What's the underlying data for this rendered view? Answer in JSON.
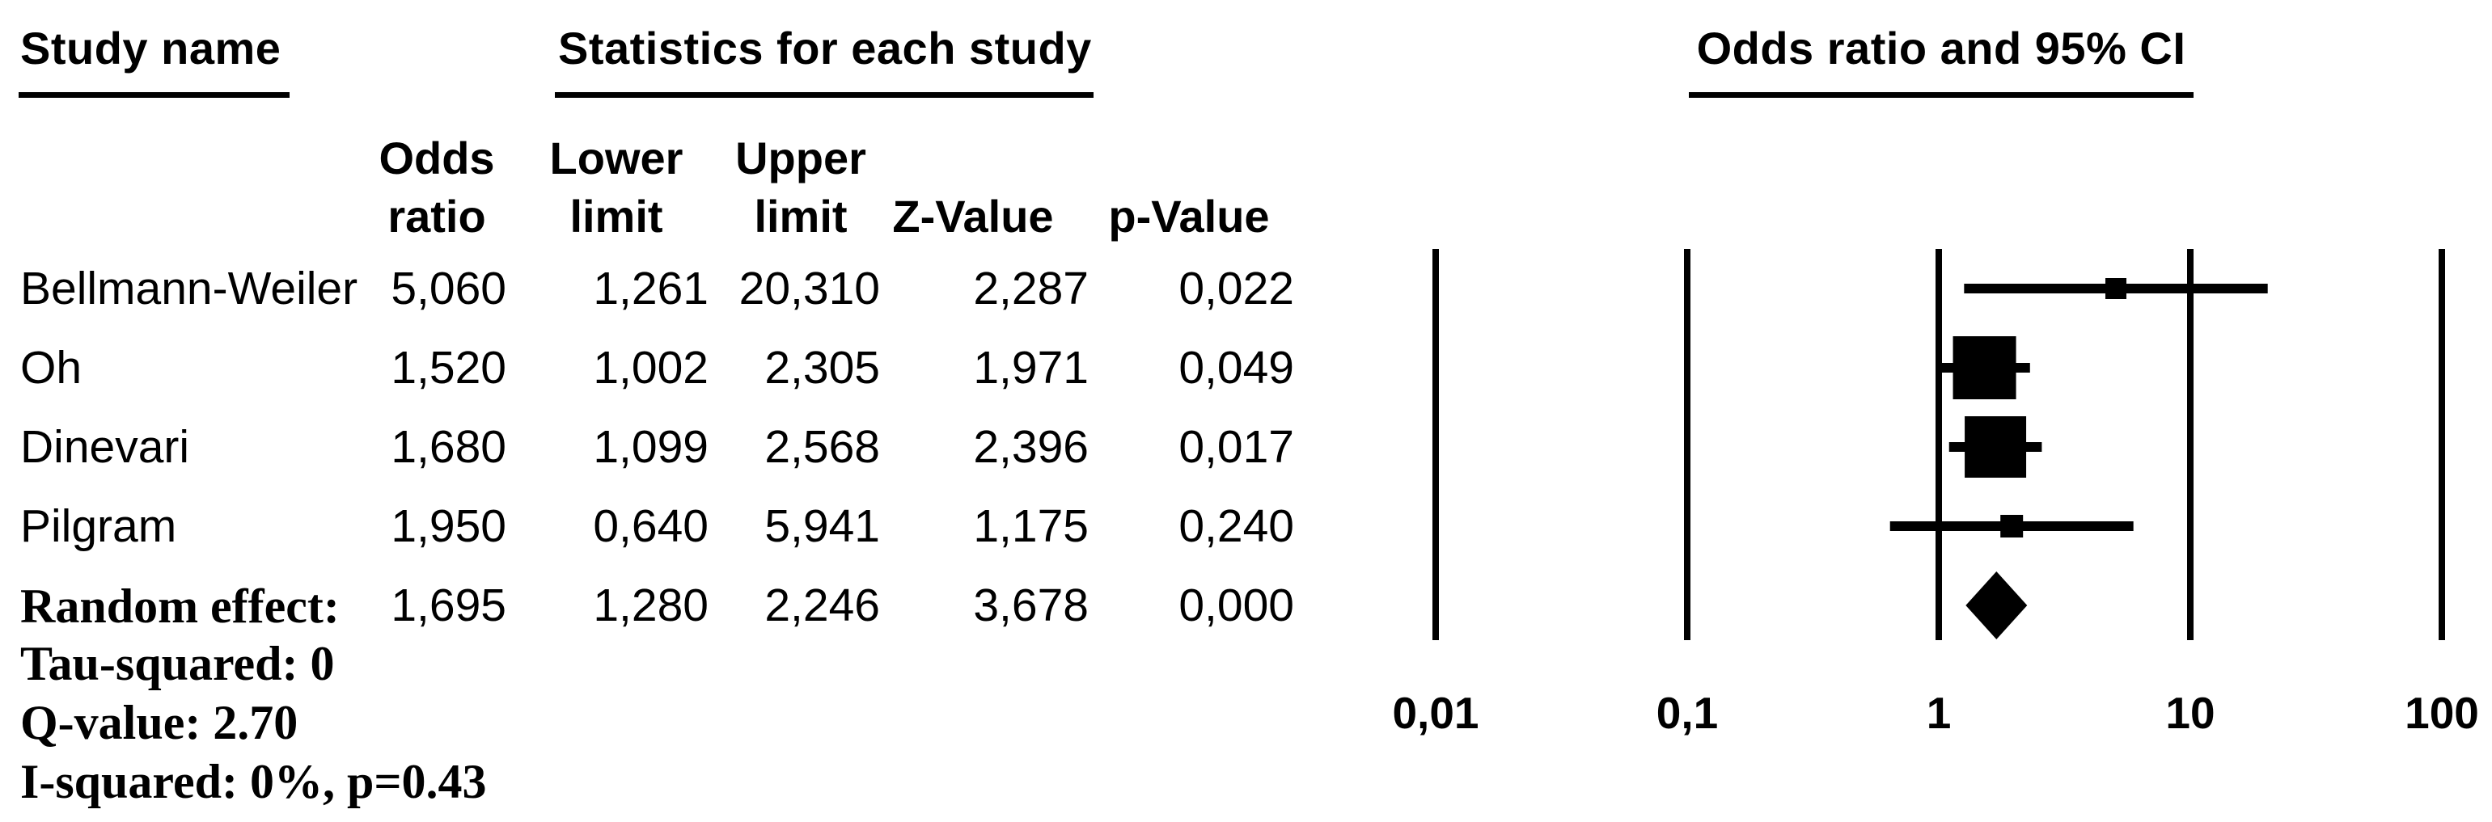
{
  "page": {
    "background": "#ffffff",
    "ink": "#000000"
  },
  "headers": {
    "study_name": "Study name",
    "statistics": "Statistics for each study",
    "plot": "Odds ratio and 95% CI"
  },
  "table": {
    "columns": [
      {
        "line1": "Odds",
        "line2": "ratio"
      },
      {
        "line1": "Lower",
        "line2": "limit"
      },
      {
        "line1": "Upper",
        "line2": "limit"
      },
      {
        "line1": "",
        "line2": "Z-Value"
      },
      {
        "line1": "",
        "line2": "p-Value"
      }
    ],
    "rows": [
      {
        "study": "Bellmann-Weiler",
        "odds_ratio": "5,060",
        "lower_limit": "1,261",
        "upper_limit": "20,310",
        "z_value": "2,287",
        "p_value": "0,022"
      },
      {
        "study": "Oh",
        "odds_ratio": "1,520",
        "lower_limit": "1,002",
        "upper_limit": "2,305",
        "z_value": "1,971",
        "p_value": "0,049"
      },
      {
        "study": "Dinevari",
        "odds_ratio": "1,680",
        "lower_limit": "1,099",
        "upper_limit": "2,568",
        "z_value": "2,396",
        "p_value": "0,017"
      },
      {
        "study": "Pilgram",
        "odds_ratio": "1,950",
        "lower_limit": "0,640",
        "upper_limit": "5,941",
        "z_value": "1,175",
        "p_value": "0,240"
      }
    ],
    "summary_row": {
      "study": "Random effect:",
      "odds_ratio": "1,695",
      "lower_limit": "1,280",
      "upper_limit": "2,246",
      "z_value": "3,678",
      "p_value": "0,000"
    }
  },
  "heterogeneity": [
    "Tau-squared: 0",
    "Q-value: 2.70",
    "I-squared: 0%, p=0.43"
  ],
  "chart_data": {
    "type": "forest",
    "title": "Odds ratio and 95% CI",
    "x_scale": "log10",
    "x_range": [
      0.01,
      100
    ],
    "x_ticks": [
      {
        "value": 0.01,
        "label": "0,01"
      },
      {
        "value": 0.1,
        "label": "0,1"
      },
      {
        "value": 1,
        "label": "1"
      },
      {
        "value": 10,
        "label": "10"
      },
      {
        "value": 100,
        "label": "100"
      }
    ],
    "gridlines": true,
    "studies": [
      {
        "name": "Bellmann-Weiler",
        "or": 5.06,
        "ci_low": 1.261,
        "ci_high": 20.31,
        "marker_px": 26
      },
      {
        "name": "Oh",
        "or": 1.52,
        "ci_low": 1.002,
        "ci_high": 2.305,
        "marker_px": 78
      },
      {
        "name": "Dinevari",
        "or": 1.68,
        "ci_low": 1.099,
        "ci_high": 2.568,
        "marker_px": 76
      },
      {
        "name": "Pilgram",
        "or": 1.95,
        "ci_low": 0.64,
        "ci_high": 5.941,
        "marker_px": 28
      }
    ],
    "summary": {
      "name": "Random effect",
      "or": 1.695,
      "ci_low": 1.28,
      "ci_high": 2.246,
      "shape": "diamond"
    }
  }
}
